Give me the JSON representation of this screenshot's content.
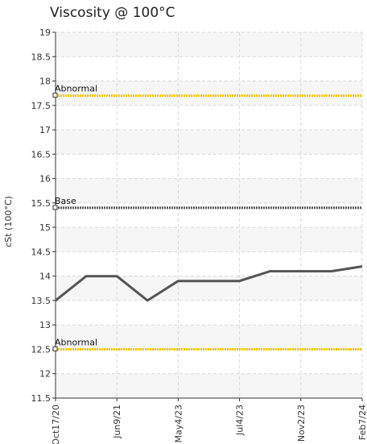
{
  "chart_data": {
    "type": "line",
    "title": "Viscosity @ 100°C",
    "ylabel": "cSt (100°C)",
    "xlabel": "",
    "ylim": [
      11.5,
      19
    ],
    "yticks": [
      "11.5",
      "12",
      "12.5",
      "13",
      "13.5",
      "14",
      "14.5",
      "15",
      "15.5",
      "16",
      "16.5",
      "17",
      "17.5",
      "18",
      "18.5",
      "19"
    ],
    "x_tick_labels": [
      "Oct17/20",
      "Jun9/21",
      "May4/23",
      "Jul4/23",
      "Nov2/23",
      "Feb7/24"
    ],
    "grid": true,
    "series": [
      {
        "name": "",
        "color": "#555555",
        "values": [
          13.5,
          14.0,
          14.0,
          13.5,
          13.9,
          13.9,
          13.9,
          14.1,
          14.1,
          14.1,
          14.2
        ]
      }
    ],
    "reference_lines": [
      {
        "label": "Abnormal",
        "value": 17.7,
        "color": "#f5c400"
      },
      {
        "label": "Base",
        "value": 15.4,
        "color": "#555555"
      },
      {
        "label": "Abnormal",
        "value": 12.5,
        "color": "#f5c400"
      }
    ]
  }
}
